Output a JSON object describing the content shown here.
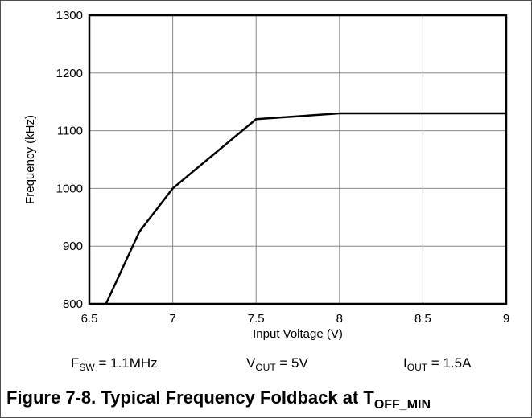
{
  "chart_data": {
    "type": "line",
    "xlabel": "Input Voltage (V)",
    "ylabel": "Frequency (kHz)",
    "xlim": [
      6.5,
      9
    ],
    "ylim": [
      800,
      1300
    ],
    "xticks": [
      6.5,
      7,
      7.5,
      8,
      8.5,
      9
    ],
    "yticks": [
      800,
      900,
      1000,
      1100,
      1200,
      1300
    ],
    "xtick_labels": [
      "6.5",
      "7",
      "7.5",
      "8",
      "8.5",
      "9"
    ],
    "ytick_labels": [
      "800",
      "900",
      "1000",
      "1100",
      "1200",
      "1300"
    ],
    "grid": true,
    "series": [
      {
        "color": "#000000",
        "x": [
          6.6,
          6.8,
          7.0,
          7.5,
          8.0,
          8.5,
          9.0
        ],
        "y": [
          800,
          925,
          1000,
          1120,
          1130,
          1130,
          1130
        ]
      }
    ]
  },
  "conditions": {
    "fsw": {
      "main": "F",
      "sub": "SW",
      "rest": " = 1.1MHz"
    },
    "vout": {
      "main": "V",
      "sub": "OUT",
      "rest": " = 5V"
    },
    "iout": {
      "main": "I",
      "sub": "OUT",
      "rest": " = 1.5A"
    }
  },
  "caption": {
    "main": "Figure 7-8. Typical Frequency Foldback at T",
    "sub": "OFF_MIN"
  }
}
